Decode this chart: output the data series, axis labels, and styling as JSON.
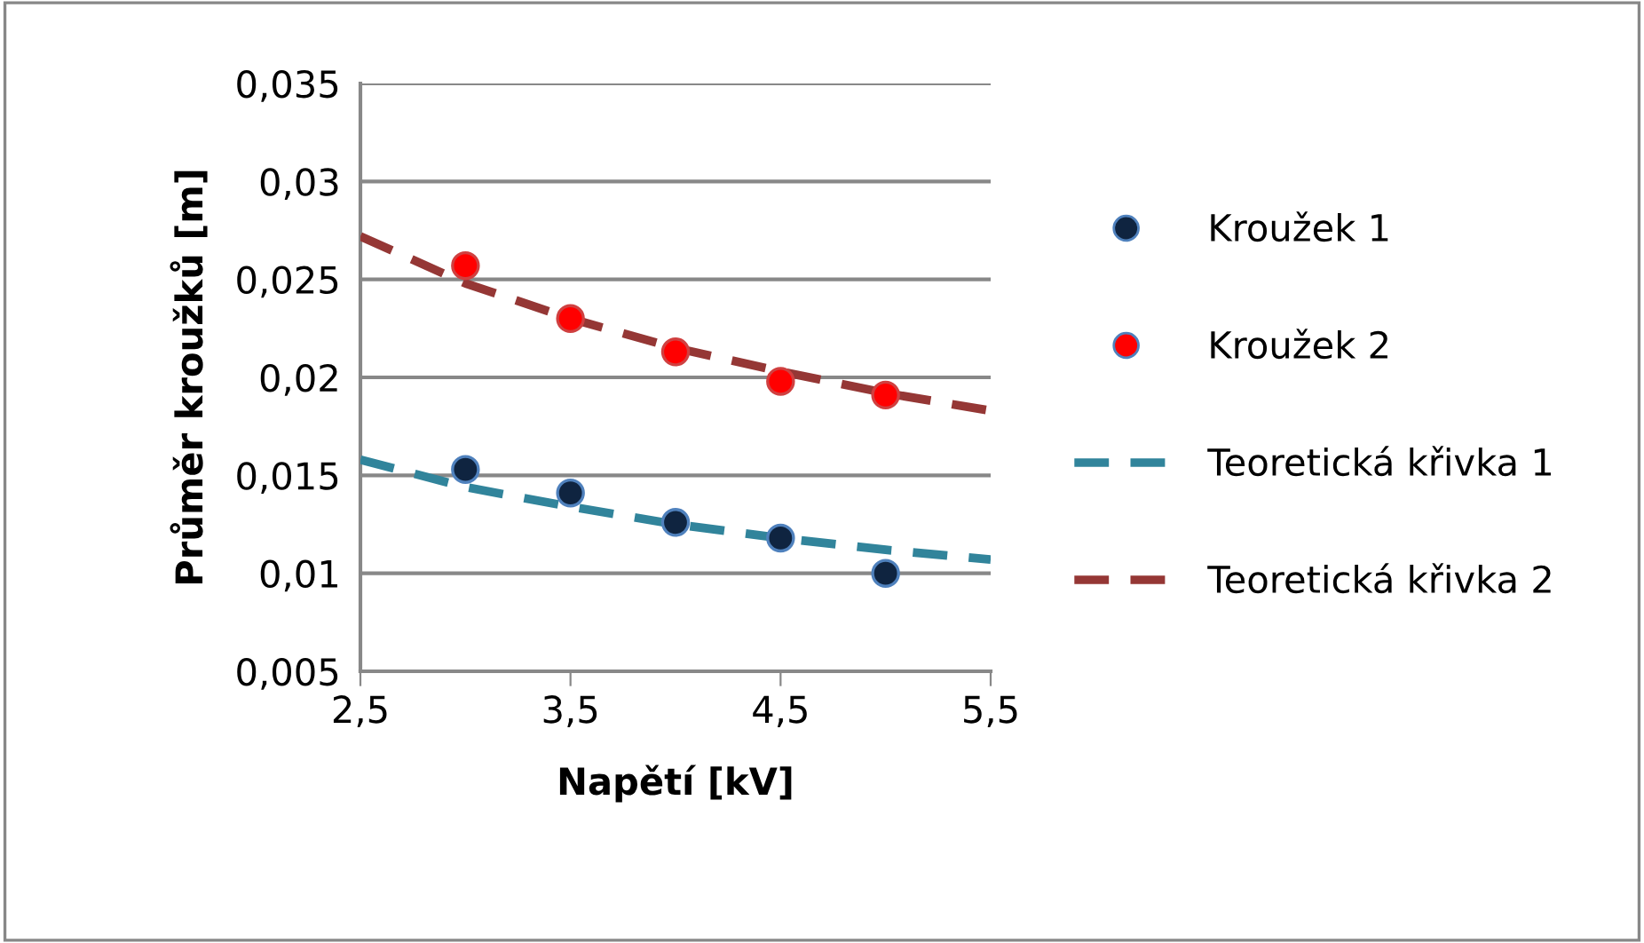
{
  "chart_data": {
    "type": "scatter",
    "xlabel": "Napětí [kV]",
    "ylabel": "Průměr kroužků [m]",
    "xlim": [
      2.5,
      5.5
    ],
    "xticks": [
      {
        "value": 2.5,
        "label": "2,5"
      },
      {
        "value": 3.5,
        "label": "3,5"
      },
      {
        "value": 4.5,
        "label": "4,5"
      },
      {
        "value": 5.5,
        "label": "5,5"
      }
    ],
    "ylim": [
      0.005,
      0.035
    ],
    "yticks": [
      {
        "value": 0.005,
        "label": "0,005"
      },
      {
        "value": 0.01,
        "label": "0,01"
      },
      {
        "value": 0.015,
        "label": "0,015"
      },
      {
        "value": 0.02,
        "label": "0,02"
      },
      {
        "value": 0.025,
        "label": "0,025"
      },
      {
        "value": 0.03,
        "label": "0,03"
      },
      {
        "value": 0.035,
        "label": "0,035"
      }
    ],
    "grid": "y",
    "legend": "right",
    "series": [
      {
        "name": "Kroužek 1",
        "marker": "circle",
        "color": "#0f2440",
        "x": [
          3,
          3.5,
          4,
          4.5,
          5
        ],
        "values": [
          0.0153,
          0.0141,
          0.0126,
          0.0118,
          0.01
        ]
      },
      {
        "name": "Kroužek 2",
        "marker": "circle",
        "color": "#ff0000",
        "x": [
          3,
          3.5,
          4,
          4.5,
          5
        ],
        "values": [
          0.0257,
          0.023,
          0.0213,
          0.0198,
          0.0191
        ]
      },
      {
        "name": "Teoretická křivka 1",
        "type": "line",
        "line_style": "dashed",
        "marker": "none",
        "color": "#31849b",
        "x": [
          2.5,
          3,
          3.5,
          4,
          4.5,
          5,
          5.5
        ],
        "values": [
          0.0158,
          0.0144,
          0.0134,
          0.0125,
          0.0118,
          0.0112,
          0.0107
        ]
      },
      {
        "name": "Teoretická křivka 2",
        "type": "line",
        "line_style": "dashed",
        "marker": "none",
        "color": "#953735",
        "x": [
          2.5,
          3,
          3.5,
          4,
          4.5,
          5,
          5.5
        ],
        "values": [
          0.0272,
          0.0248,
          0.023,
          0.0215,
          0.0203,
          0.0192,
          0.0183
        ]
      }
    ]
  }
}
